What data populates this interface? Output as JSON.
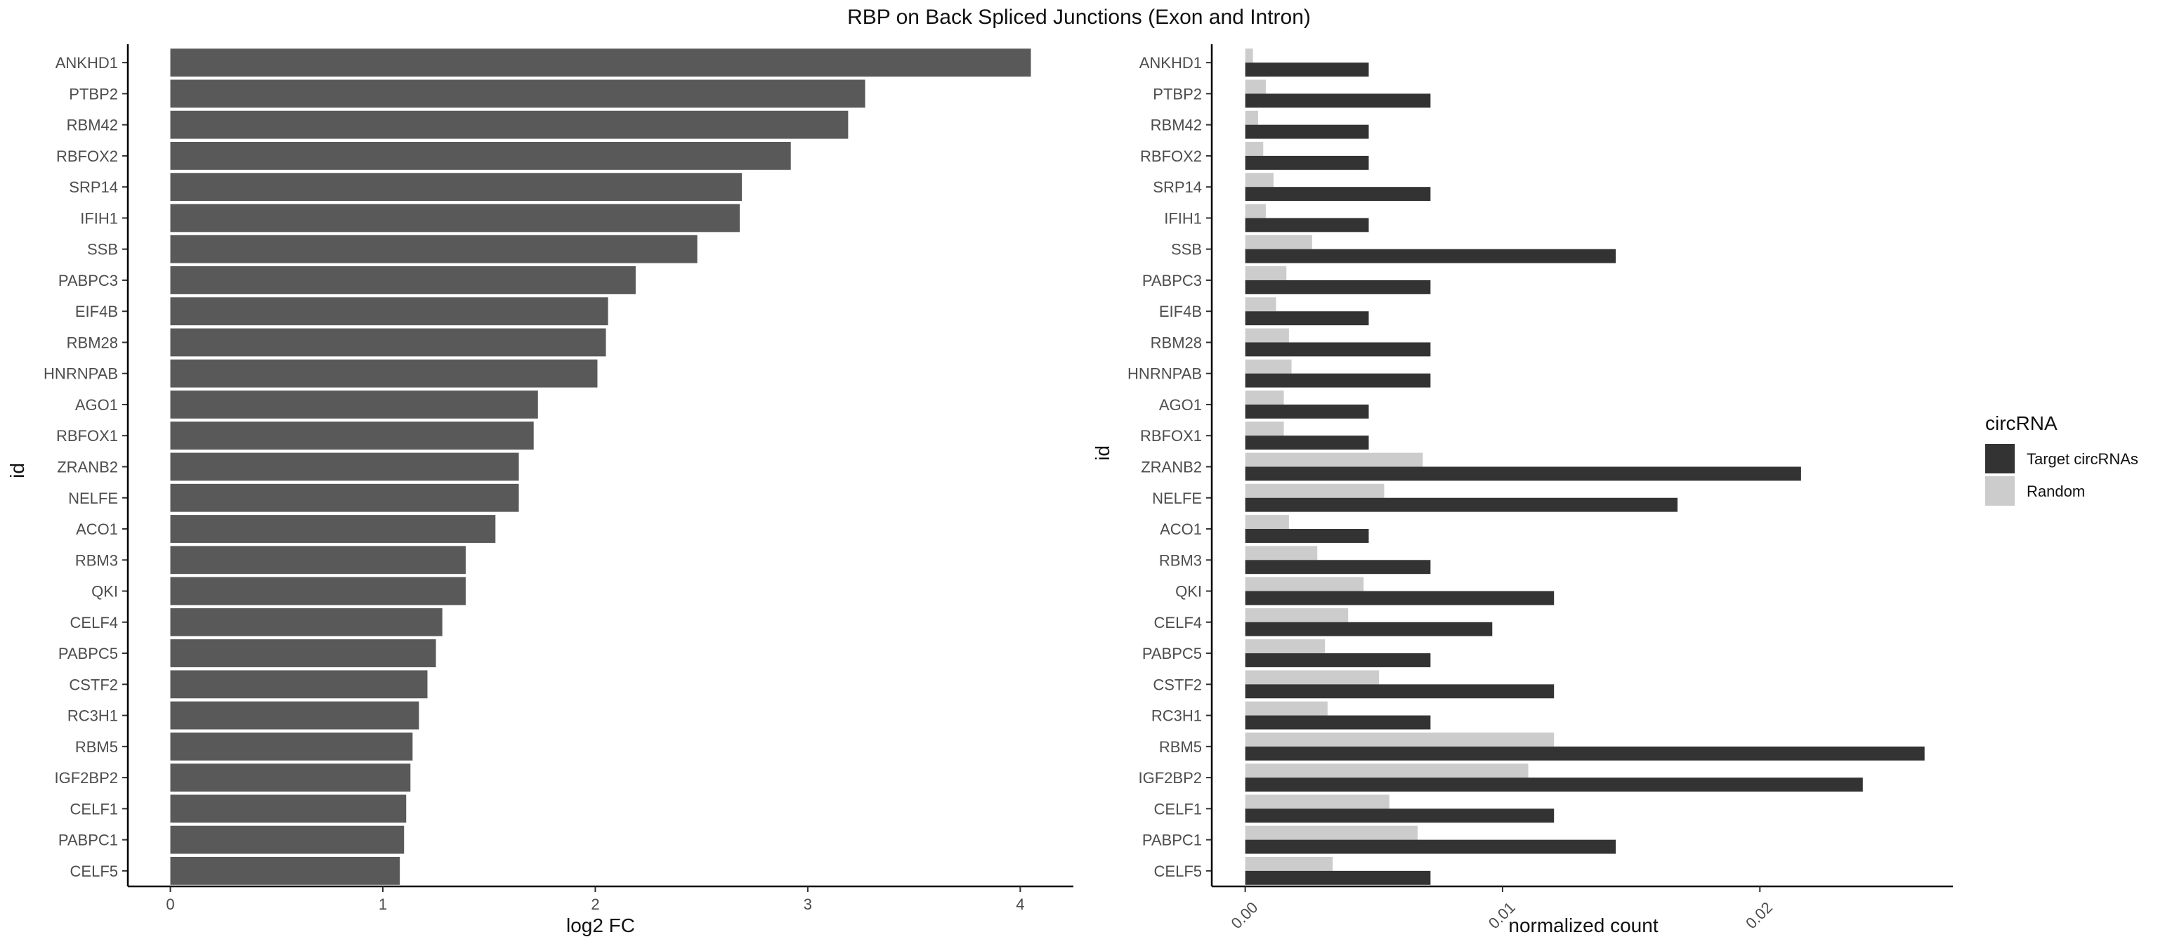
{
  "figure_title": "RBP on Back Spliced Junctions (Exon and Intron)",
  "chart_data": [
    {
      "type": "bar",
      "orientation": "horizontal",
      "xlabel": "log2 FC",
      "ylabel": "id",
      "xlim": [
        -0.2,
        4.25
      ],
      "x_ticks": [
        0,
        1,
        2,
        3,
        4
      ],
      "x_tick_labels": [
        "0",
        "1",
        "2",
        "3",
        "4"
      ],
      "grid": false,
      "bar_color": "#595959",
      "categories": [
        "ANKHD1",
        "PTBP2",
        "RBM42",
        "RBFOX2",
        "SRP14",
        "IFIH1",
        "SSB",
        "PABPC3",
        "EIF4B",
        "RBM28",
        "HNRNPAB",
        "AGO1",
        "RBFOX1",
        "ZRANB2",
        "NELFE",
        "ACO1",
        "RBM3",
        "QKI",
        "CELF4",
        "PABPC5",
        "CSTF2",
        "RC3H1",
        "RBM5",
        "IGF2BP2",
        "CELF1",
        "PABPC1",
        "CELF5"
      ],
      "values": [
        4.05,
        3.27,
        3.19,
        2.92,
        2.69,
        2.68,
        2.48,
        2.19,
        2.06,
        2.05,
        2.01,
        1.73,
        1.71,
        1.64,
        1.64,
        1.53,
        1.39,
        1.39,
        1.28,
        1.25,
        1.21,
        1.17,
        1.14,
        1.13,
        1.11,
        1.1,
        1.08
      ]
    },
    {
      "type": "bar",
      "orientation": "horizontal",
      "xlabel": "normalized count",
      "ylabel": "id",
      "xlim": [
        -0.0013,
        0.0275
      ],
      "x_ticks": [
        0,
        0.01,
        0.02
      ],
      "x_tick_labels": [
        "0.00",
        "0.01",
        "0.02"
      ],
      "x_tick_label_rotation": -45,
      "grid": false,
      "legend_position": "right",
      "legend_title": "circRNA",
      "categories": [
        "ANKHD1",
        "PTBP2",
        "RBM42",
        "RBFOX2",
        "SRP14",
        "IFIH1",
        "SSB",
        "PABPC3",
        "EIF4B",
        "RBM28",
        "HNRNPAB",
        "AGO1",
        "RBFOX1",
        "ZRANB2",
        "NELFE",
        "ACO1",
        "RBM3",
        "QKI",
        "CELF4",
        "PABPC5",
        "CSTF2",
        "RC3H1",
        "RBM5",
        "IGF2BP2",
        "CELF1",
        "PABPC1",
        "CELF5"
      ],
      "series": [
        {
          "name": "Target circRNAs",
          "color": "#333333",
          "values": [
            0.0048,
            0.0072,
            0.0048,
            0.0048,
            0.0072,
            0.0048,
            0.0144,
            0.0072,
            0.0048,
            0.0072,
            0.0072,
            0.0048,
            0.0048,
            0.0216,
            0.0168,
            0.0048,
            0.0072,
            0.012,
            0.0096,
            0.0072,
            0.012,
            0.0072,
            0.0264,
            0.024,
            0.012,
            0.0144,
            0.0072
          ]
        },
        {
          "name": "Random",
          "color": "#cccccc",
          "values": [
            0.0003,
            0.0008,
            0.0005,
            0.0007,
            0.0011,
            0.0008,
            0.0026,
            0.0016,
            0.0012,
            0.0017,
            0.0018,
            0.0015,
            0.0015,
            0.0069,
            0.0054,
            0.0017,
            0.0028,
            0.0046,
            0.004,
            0.0031,
            0.0052,
            0.0032,
            0.012,
            0.011,
            0.0056,
            0.0067,
            0.0034
          ]
        }
      ]
    }
  ]
}
